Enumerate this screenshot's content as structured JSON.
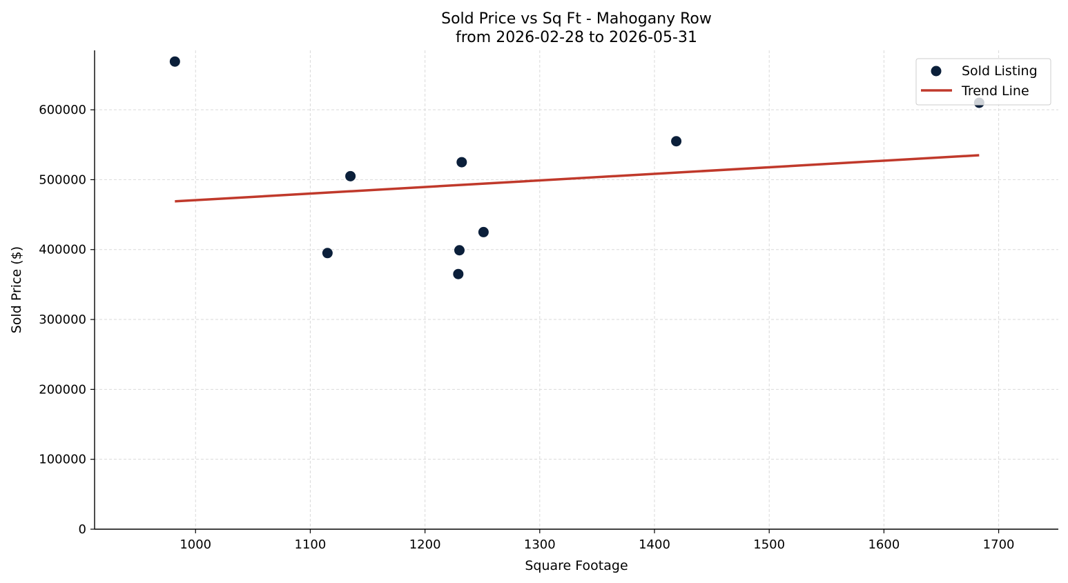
{
  "chart_data": {
    "type": "scatter",
    "title_line1": "Sold Price vs Sq Ft - Mahogany Row",
    "title_line2": "from 2026-02-28 to 2026-05-31",
    "xlabel": "Square Footage",
    "ylabel": "Sold Price ($)",
    "xlim": [
      912,
      1752
    ],
    "ylim": [
      0,
      685000
    ],
    "xticks": [
      1000,
      1100,
      1200,
      1300,
      1400,
      1500,
      1600,
      1700
    ],
    "yticks": [
      0,
      100000,
      200000,
      300000,
      400000,
      500000,
      600000
    ],
    "grid": true,
    "legend_position": "top-right",
    "series": [
      {
        "name": "Sold Listing",
        "kind": "scatter",
        "color": "#0b1f3a",
        "points": [
          {
            "x": 982,
            "y": 669000
          },
          {
            "x": 1115,
            "y": 395000
          },
          {
            "x": 1135,
            "y": 505000
          },
          {
            "x": 1229,
            "y": 365000
          },
          {
            "x": 1230,
            "y": 399000
          },
          {
            "x": 1232,
            "y": 525000
          },
          {
            "x": 1251,
            "y": 425000
          },
          {
            "x": 1419,
            "y": 555000
          },
          {
            "x": 1683,
            "y": 610000
          }
        ]
      },
      {
        "name": "Trend Line",
        "kind": "line",
        "color": "#c0392b",
        "points": [
          {
            "x": 982,
            "y": 469000
          },
          {
            "x": 1683,
            "y": 535000
          }
        ]
      }
    ]
  }
}
